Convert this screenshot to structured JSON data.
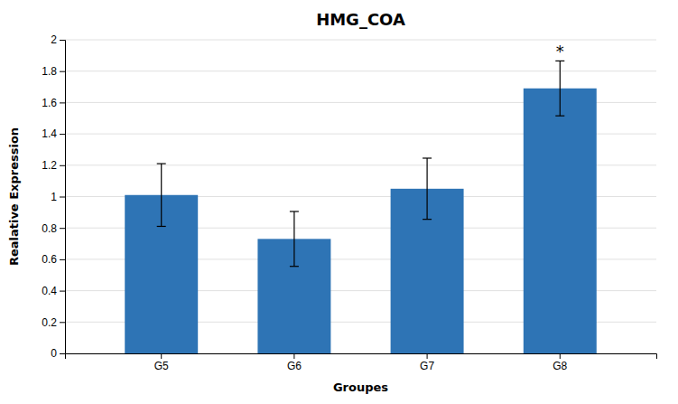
{
  "chart_data": {
    "type": "bar",
    "title": "HMG_COA",
    "xlabel": "Groupes",
    "ylabel": "Realative Expression",
    "categories": [
      "G5",
      "G6",
      "G7",
      "G8"
    ],
    "values": [
      1.01,
      0.73,
      1.05,
      1.69
    ],
    "errors": [
      0.2,
      0.175,
      0.195,
      0.175
    ],
    "color": "#2E74B5",
    "ylim": [
      0,
      2.0
    ],
    "yticks": [
      0,
      0.2,
      0.4,
      0.6,
      0.8,
      1,
      1.2,
      1.4,
      1.6,
      1.8,
      2
    ],
    "grid": true,
    "annotations": [
      {
        "text": "*",
        "category": "G8"
      }
    ]
  }
}
